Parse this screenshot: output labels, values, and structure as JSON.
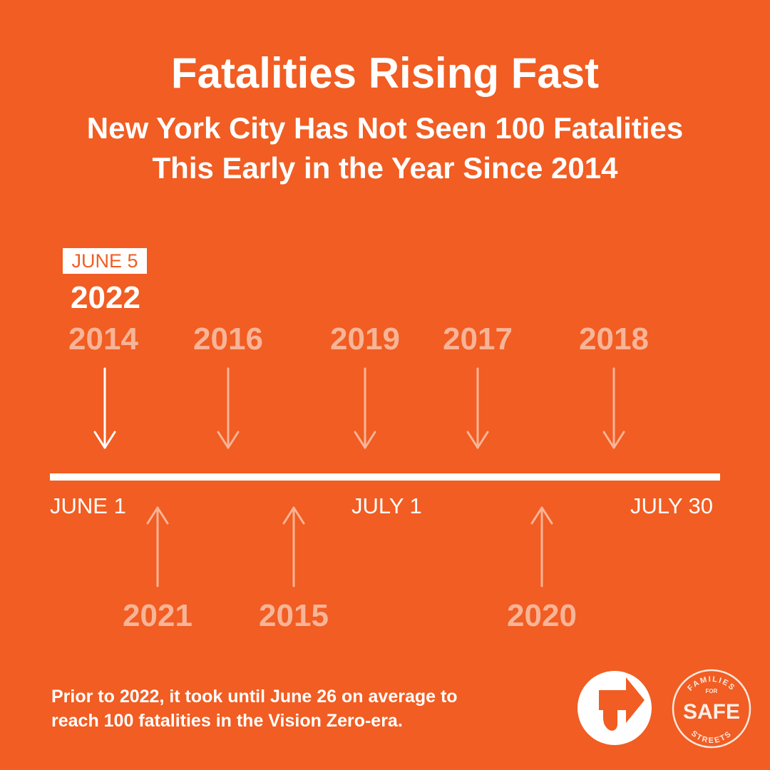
{
  "header": {
    "title": "Fatalities Rising Fast",
    "subtitle_line1": "New York City Has Not Seen 100 Fatalities",
    "subtitle_line2": "This Early in the Year Since 2014"
  },
  "timeline": {
    "current": {
      "date_label": "JUNE 5",
      "year": "2022"
    },
    "above": [
      {
        "year": "2014"
      },
      {
        "year": "2016"
      },
      {
        "year": "2019"
      },
      {
        "year": "2017"
      },
      {
        "year": "2018"
      }
    ],
    "below": [
      {
        "year": "2021"
      },
      {
        "year": "2015"
      },
      {
        "year": "2020"
      }
    ],
    "axis": {
      "start": "JUNE 1",
      "middle": "JULY 1",
      "end": "JULY 30"
    }
  },
  "footnote": {
    "line1": "Prior to 2022, it took until June 26 on average to",
    "line2": "reach 100 fatalities in the Vision Zero-era."
  },
  "logos": {
    "tsa_icon": "turn-arrow-logo-icon",
    "ffss": {
      "top": "FAMILIES",
      "for": "FOR",
      "middle": "SAFE",
      "bottom": "STREETS"
    }
  },
  "colors": {
    "background": "#F15D22",
    "primary": "#FFFFFF",
    "muted": "#F8B497"
  }
}
